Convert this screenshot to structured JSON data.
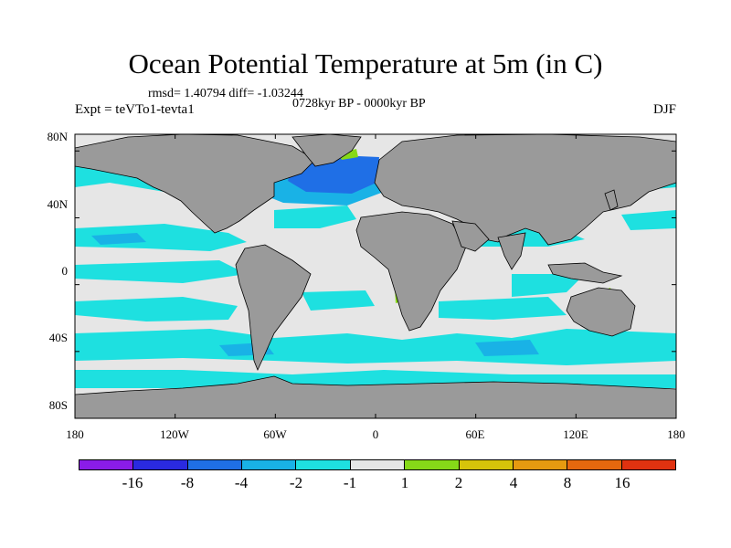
{
  "title": "Ocean Potential Temperature at 5m (in C)",
  "stats": "rmsd= 1.40794  diff= -1.03244",
  "period": "0728kyr BP - 0000kyr BP",
  "experiment": "Expt = teVTo1-tevta1",
  "season": "DJF",
  "lat_labels": [
    "80N",
    "40N",
    "0",
    "40S",
    "80S"
  ],
  "lat_values": [
    80,
    40,
    0,
    -40,
    -80
  ],
  "lon_labels": [
    "180",
    "120W",
    "60W",
    "0",
    "60E",
    "120E",
    "180"
  ],
  "lon_values": [
    -180,
    -120,
    -60,
    0,
    60,
    120,
    180
  ],
  "colorbar": {
    "labels": [
      "-16",
      "-8",
      "-4",
      "-2",
      "-1",
      "1",
      "2",
      "4",
      "8",
      "16"
    ],
    "colors": [
      "#8a1ce8",
      "#2a2ae0",
      "#1f6fe6",
      "#19b2e6",
      "#1ee0e0",
      "#e6e6e6",
      "#86d918",
      "#d6c40a",
      "#e69a10",
      "#e6680e",
      "#e03210"
    ]
  },
  "colors": {
    "land": "#9a9a9a",
    "near_zero": "#e6e6e6",
    "cool1": "#1ee0e0",
    "cool2": "#19b2e6",
    "cool3": "#1f6fe6",
    "warm": "#86d918"
  }
}
